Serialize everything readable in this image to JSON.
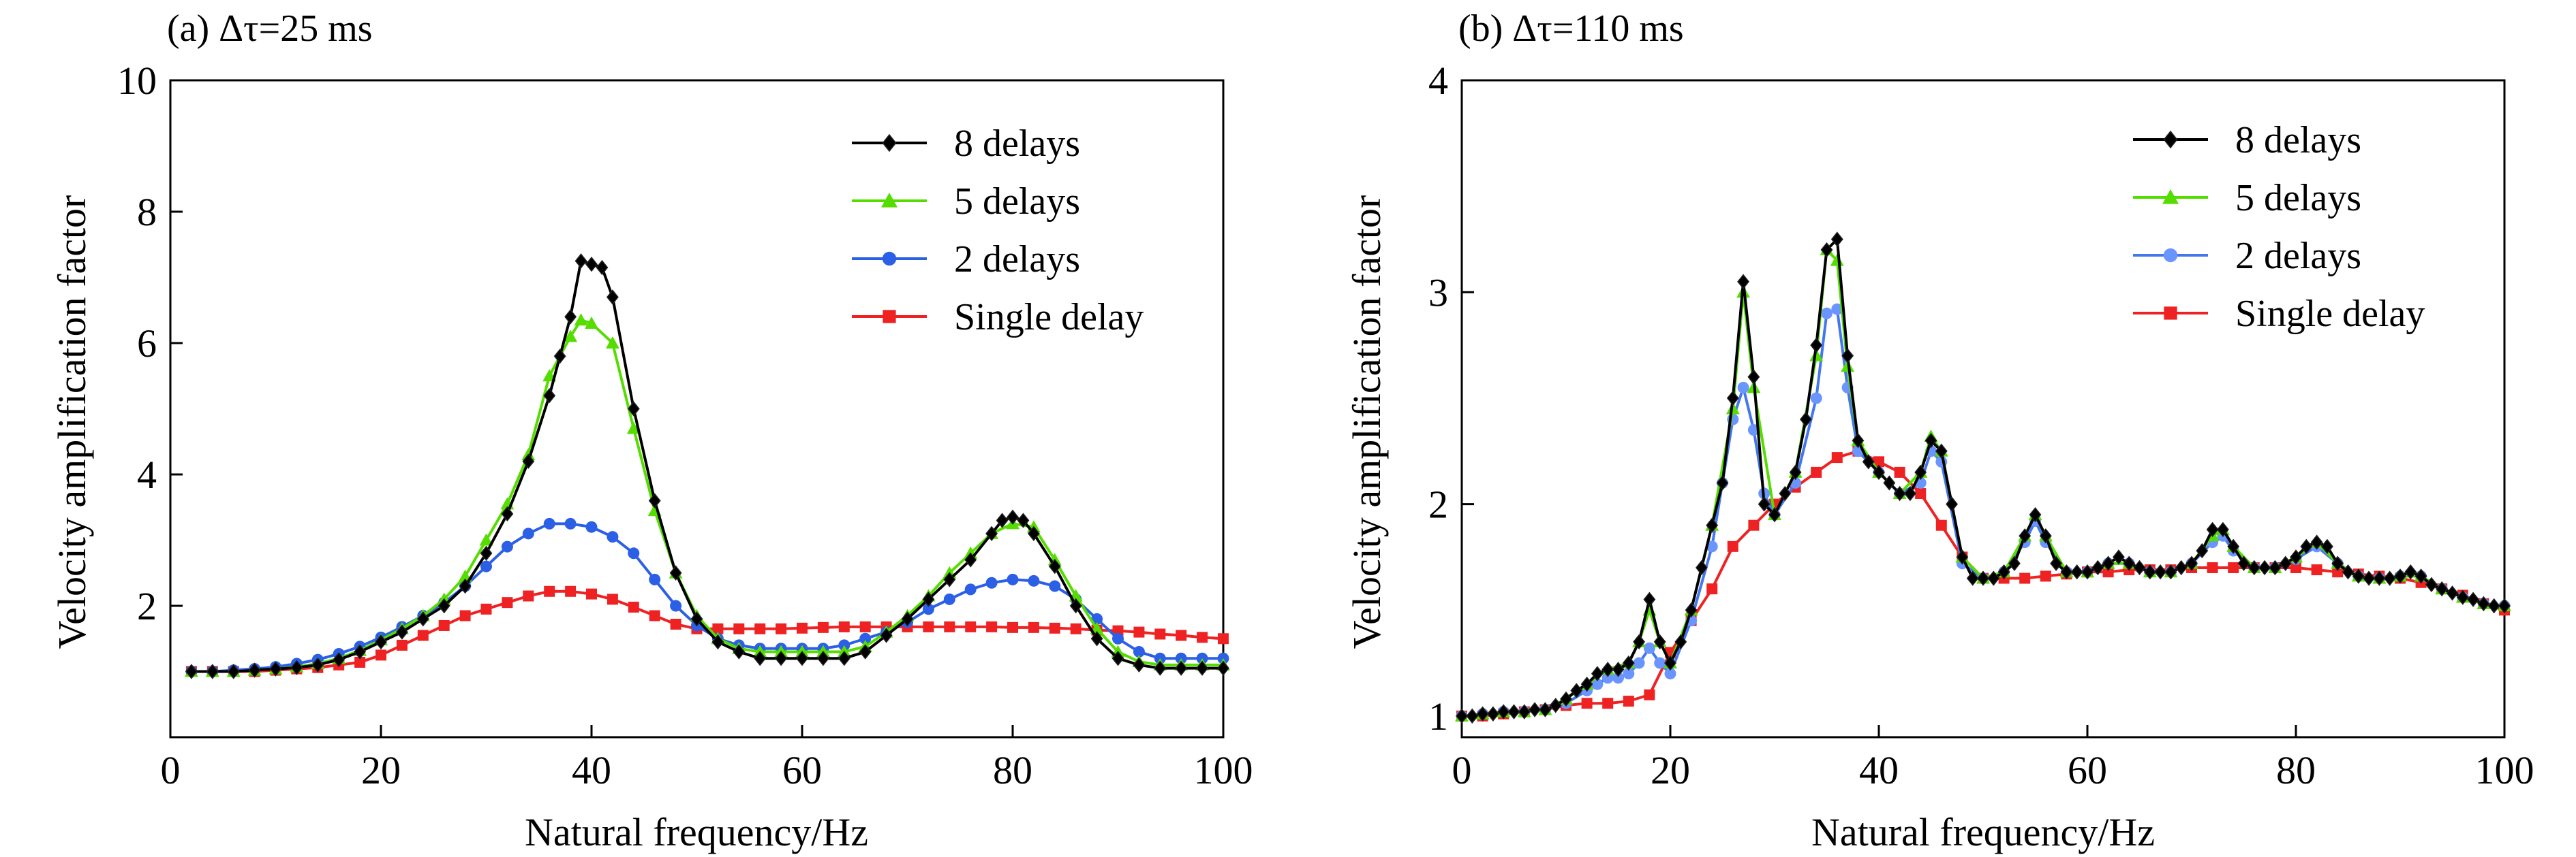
{
  "chart_data": [
    {
      "type": "line",
      "title": "(a) Δτ=25 ms",
      "xlabel": "Natural frequency/Hz",
      "ylabel": "Velocity amplification factor",
      "xlim": [
        0,
        100
      ],
      "ylim": [
        0,
        10
      ],
      "xticks": [
        0,
        20,
        40,
        60,
        80,
        100
      ],
      "yticks": [
        2,
        4,
        6,
        8,
        10
      ],
      "legend_position": "top-right",
      "grid": false,
      "series": [
        {
          "name": "8 delays",
          "color": "#000000",
          "marker": "diamond",
          "marker_color": "#000000",
          "x": [
            2,
            4,
            6,
            8,
            10,
            12,
            14,
            16,
            18,
            20,
            22,
            24,
            26,
            28,
            30,
            32,
            34,
            36,
            37,
            38,
            39,
            40,
            41,
            42,
            44,
            46,
            48,
            50,
            52,
            54,
            56,
            58,
            60,
            62,
            64,
            66,
            68,
            70,
            72,
            74,
            76,
            78,
            79,
            80,
            81,
            82,
            84,
            86,
            88,
            90,
            92,
            94,
            96,
            98,
            100
          ],
          "y": [
            1.0,
            1.0,
            1.0,
            1.02,
            1.04,
            1.06,
            1.1,
            1.18,
            1.3,
            1.45,
            1.6,
            1.8,
            2.0,
            2.3,
            2.8,
            3.4,
            4.2,
            5.2,
            5.8,
            6.4,
            7.25,
            7.2,
            7.15,
            6.7,
            5.0,
            3.6,
            2.5,
            1.8,
            1.45,
            1.3,
            1.2,
            1.2,
            1.2,
            1.2,
            1.2,
            1.3,
            1.55,
            1.8,
            2.1,
            2.4,
            2.7,
            3.1,
            3.3,
            3.35,
            3.3,
            3.1,
            2.6,
            2.0,
            1.5,
            1.2,
            1.1,
            1.05,
            1.05,
            1.05,
            1.05
          ]
        },
        {
          "name": "5 delays",
          "color": "#55dd00",
          "marker": "triangle",
          "marker_color": "#55dd00",
          "x": [
            2,
            4,
            6,
            8,
            10,
            12,
            14,
            16,
            18,
            20,
            22,
            24,
            26,
            28,
            30,
            32,
            34,
            36,
            38,
            39,
            40,
            42,
            44,
            46,
            48,
            50,
            52,
            54,
            56,
            58,
            60,
            62,
            64,
            66,
            68,
            70,
            72,
            74,
            76,
            78,
            80,
            82,
            84,
            86,
            88,
            90,
            92,
            94,
            96,
            98,
            100
          ],
          "y": [
            1.0,
            1.0,
            1.0,
            1.02,
            1.04,
            1.07,
            1.12,
            1.2,
            1.32,
            1.48,
            1.65,
            1.85,
            2.1,
            2.45,
            3.0,
            3.55,
            4.3,
            5.5,
            6.1,
            6.35,
            6.3,
            6.0,
            4.7,
            3.45,
            2.5,
            1.85,
            1.5,
            1.35,
            1.3,
            1.3,
            1.3,
            1.3,
            1.3,
            1.38,
            1.6,
            1.85,
            2.15,
            2.5,
            2.8,
            3.1,
            3.25,
            3.2,
            2.7,
            2.15,
            1.65,
            1.3,
            1.15,
            1.1,
            1.1,
            1.1,
            1.1
          ]
        },
        {
          "name": "2 delays",
          "color": "#2b5fe6",
          "marker": "circle",
          "marker_color": "#2b5fe6",
          "x": [
            2,
            4,
            6,
            8,
            10,
            12,
            14,
            16,
            18,
            20,
            22,
            24,
            26,
            28,
            30,
            32,
            34,
            36,
            38,
            40,
            42,
            44,
            46,
            48,
            50,
            52,
            54,
            56,
            58,
            60,
            62,
            64,
            66,
            68,
            70,
            72,
            74,
            76,
            78,
            80,
            82,
            84,
            86,
            88,
            90,
            92,
            94,
            96,
            98,
            100
          ],
          "y": [
            1.0,
            1.0,
            1.02,
            1.04,
            1.07,
            1.12,
            1.18,
            1.27,
            1.38,
            1.52,
            1.68,
            1.85,
            2.05,
            2.3,
            2.6,
            2.9,
            3.1,
            3.25,
            3.25,
            3.2,
            3.05,
            2.8,
            2.4,
            2.0,
            1.7,
            1.5,
            1.4,
            1.35,
            1.35,
            1.35,
            1.35,
            1.4,
            1.5,
            1.6,
            1.75,
            1.95,
            2.1,
            2.25,
            2.35,
            2.4,
            2.38,
            2.3,
            2.1,
            1.8,
            1.5,
            1.3,
            1.2,
            1.2,
            1.2,
            1.2
          ]
        },
        {
          "name": "Single delay",
          "color": "#ee2222",
          "marker": "square",
          "marker_color": "#ee2222",
          "x": [
            2,
            4,
            6,
            8,
            10,
            12,
            14,
            16,
            18,
            20,
            22,
            24,
            26,
            28,
            30,
            32,
            34,
            36,
            38,
            40,
            42,
            44,
            46,
            48,
            50,
            52,
            54,
            56,
            58,
            60,
            62,
            64,
            66,
            68,
            70,
            72,
            74,
            76,
            78,
            80,
            82,
            84,
            86,
            88,
            90,
            92,
            94,
            96,
            98,
            100
          ],
          "y": [
            1.0,
            1.0,
            1.0,
            1.0,
            1.02,
            1.04,
            1.06,
            1.1,
            1.14,
            1.25,
            1.4,
            1.55,
            1.7,
            1.85,
            1.95,
            2.05,
            2.15,
            2.22,
            2.22,
            2.18,
            2.1,
            1.98,
            1.85,
            1.72,
            1.65,
            1.65,
            1.65,
            1.65,
            1.65,
            1.66,
            1.67,
            1.68,
            1.68,
            1.68,
            1.68,
            1.68,
            1.68,
            1.68,
            1.68,
            1.67,
            1.67,
            1.66,
            1.65,
            1.63,
            1.62,
            1.6,
            1.57,
            1.55,
            1.52,
            1.5
          ]
        }
      ]
    },
    {
      "type": "line",
      "title": "(b) Δτ=110 ms",
      "xlabel": "Natural frequency/Hz",
      "ylabel": "Velocity amplification factor",
      "xlim": [
        0,
        100
      ],
      "ylim": [
        0.9,
        4
      ],
      "xticks": [
        0,
        20,
        40,
        60,
        80,
        100
      ],
      "yticks": [
        1,
        2,
        3,
        4
      ],
      "legend_position": "top-right",
      "grid": false,
      "series": [
        {
          "name": "8 delays",
          "color": "#000000",
          "marker": "diamond",
          "marker_color": "#000000",
          "x": [
            0,
            1,
            2,
            3,
            4,
            5,
            6,
            7,
            8,
            9,
            10,
            11,
            12,
            13,
            14,
            15,
            16,
            17,
            18,
            19,
            20,
            21,
            22,
            23,
            24,
            25,
            26,
            27,
            28,
            29,
            30,
            31,
            32,
            33,
            34,
            35,
            36,
            37,
            38,
            39,
            40,
            41,
            42,
            43,
            44,
            45,
            46,
            47,
            48,
            49,
            50,
            51,
            52,
            53,
            54,
            55,
            56,
            57,
            58,
            59,
            60,
            61,
            62,
            63,
            64,
            65,
            66,
            67,
            68,
            69,
            70,
            71,
            72,
            73,
            74,
            75,
            76,
            77,
            78,
            79,
            80,
            81,
            82,
            83,
            84,
            85,
            86,
            87,
            88,
            89,
            90,
            91,
            92,
            93,
            94,
            95,
            96,
            97,
            98,
            99,
            100
          ],
          "y": [
            1.0,
            1.0,
            1.01,
            1.01,
            1.02,
            1.02,
            1.02,
            1.03,
            1.03,
            1.05,
            1.08,
            1.12,
            1.15,
            1.2,
            1.22,
            1.22,
            1.25,
            1.35,
            1.55,
            1.35,
            1.25,
            1.35,
            1.5,
            1.7,
            1.9,
            2.1,
            2.5,
            3.05,
            2.6,
            2.0,
            1.95,
            2.05,
            2.15,
            2.4,
            2.75,
            3.2,
            3.25,
            2.7,
            2.3,
            2.2,
            2.15,
            2.1,
            2.05,
            2.05,
            2.15,
            2.3,
            2.25,
            2.0,
            1.75,
            1.65,
            1.65,
            1.65,
            1.68,
            1.72,
            1.85,
            1.95,
            1.85,
            1.72,
            1.68,
            1.68,
            1.68,
            1.7,
            1.72,
            1.75,
            1.72,
            1.7,
            1.68,
            1.68,
            1.68,
            1.7,
            1.72,
            1.78,
            1.88,
            1.88,
            1.8,
            1.72,
            1.7,
            1.7,
            1.7,
            1.72,
            1.75,
            1.8,
            1.82,
            1.8,
            1.72,
            1.68,
            1.66,
            1.65,
            1.65,
            1.65,
            1.66,
            1.68,
            1.66,
            1.62,
            1.6,
            1.58,
            1.56,
            1.55,
            1.53,
            1.52,
            1.52
          ]
        },
        {
          "name": "5 delays",
          "color": "#55dd00",
          "marker": "triangle",
          "marker_color": "#55dd00",
          "x": [
            0,
            2,
            4,
            6,
            8,
            10,
            12,
            14,
            16,
            17,
            18,
            19,
            20,
            22,
            24,
            26,
            27,
            28,
            30,
            32,
            34,
            35,
            36,
            37,
            38,
            40,
            42,
            44,
            45,
            46,
            48,
            50,
            52,
            54,
            55,
            56,
            58,
            60,
            62,
            64,
            66,
            68,
            70,
            72,
            73,
            74,
            76,
            78,
            80,
            82,
            84,
            86,
            88,
            90,
            92,
            94,
            96,
            98,
            100
          ],
          "y": [
            1.0,
            1.01,
            1.02,
            1.02,
            1.03,
            1.08,
            1.15,
            1.22,
            1.25,
            1.35,
            1.5,
            1.35,
            1.25,
            1.5,
            1.9,
            2.45,
            3.0,
            2.55,
            1.95,
            2.15,
            2.7,
            3.2,
            3.15,
            2.65,
            2.3,
            2.15,
            2.05,
            2.15,
            2.32,
            2.25,
            1.75,
            1.65,
            1.68,
            1.85,
            1.95,
            1.85,
            1.68,
            1.68,
            1.72,
            1.72,
            1.68,
            1.68,
            1.72,
            1.85,
            1.88,
            1.8,
            1.7,
            1.7,
            1.75,
            1.82,
            1.72,
            1.66,
            1.65,
            1.66,
            1.66,
            1.6,
            1.56,
            1.53,
            1.52
          ]
        },
        {
          "name": "2 delays",
          "color": "#4477ee",
          "marker": "circle",
          "marker_color": "#6a95ff",
          "x": [
            0,
            2,
            4,
            6,
            8,
            10,
            12,
            13,
            14,
            15,
            16,
            17,
            18,
            19,
            20,
            22,
            24,
            25,
            26,
            27,
            28,
            29,
            30,
            32,
            34,
            35,
            36,
            37,
            38,
            40,
            42,
            44,
            45,
            46,
            48,
            50,
            52,
            54,
            55,
            56,
            58,
            60,
            62,
            64,
            66,
            68,
            70,
            72,
            73,
            74,
            76,
            78,
            80,
            82,
            84,
            86,
            88,
            90,
            92,
            94,
            96,
            98,
            100
          ],
          "y": [
            1.0,
            1.01,
            1.02,
            1.02,
            1.03,
            1.06,
            1.12,
            1.15,
            1.18,
            1.18,
            1.2,
            1.25,
            1.32,
            1.25,
            1.2,
            1.45,
            1.8,
            2.1,
            2.4,
            2.55,
            2.35,
            2.05,
            1.95,
            2.1,
            2.5,
            2.9,
            2.92,
            2.55,
            2.25,
            2.15,
            2.05,
            2.1,
            2.25,
            2.2,
            1.72,
            1.65,
            1.68,
            1.82,
            1.92,
            1.82,
            1.68,
            1.68,
            1.72,
            1.72,
            1.68,
            1.68,
            1.72,
            1.82,
            1.85,
            1.78,
            1.7,
            1.7,
            1.74,
            1.8,
            1.72,
            1.66,
            1.65,
            1.66,
            1.66,
            1.6,
            1.56,
            1.53,
            1.52
          ]
        },
        {
          "name": "Single delay",
          "color": "#ee2222",
          "marker": "square",
          "marker_color": "#ee2222",
          "x": [
            0,
            2,
            4,
            6,
            8,
            10,
            12,
            14,
            16,
            18,
            20,
            22,
            24,
            26,
            28,
            30,
            32,
            34,
            36,
            38,
            40,
            42,
            44,
            46,
            48,
            50,
            52,
            54,
            56,
            58,
            60,
            62,
            64,
            66,
            68,
            70,
            72,
            74,
            76,
            78,
            80,
            82,
            84,
            86,
            88,
            90,
            92,
            94,
            96,
            98,
            100
          ],
          "y": [
            1.0,
            1.0,
            1.01,
            1.02,
            1.03,
            1.05,
            1.06,
            1.06,
            1.07,
            1.1,
            1.3,
            1.45,
            1.6,
            1.8,
            1.9,
            2.0,
            2.08,
            2.15,
            2.22,
            2.25,
            2.2,
            2.15,
            2.05,
            1.9,
            1.75,
            1.65,
            1.65,
            1.65,
            1.66,
            1.67,
            1.68,
            1.68,
            1.69,
            1.69,
            1.69,
            1.7,
            1.7,
            1.7,
            1.7,
            1.7,
            1.7,
            1.69,
            1.68,
            1.67,
            1.66,
            1.65,
            1.63,
            1.6,
            1.57,
            1.53,
            1.5
          ]
        }
      ]
    }
  ]
}
